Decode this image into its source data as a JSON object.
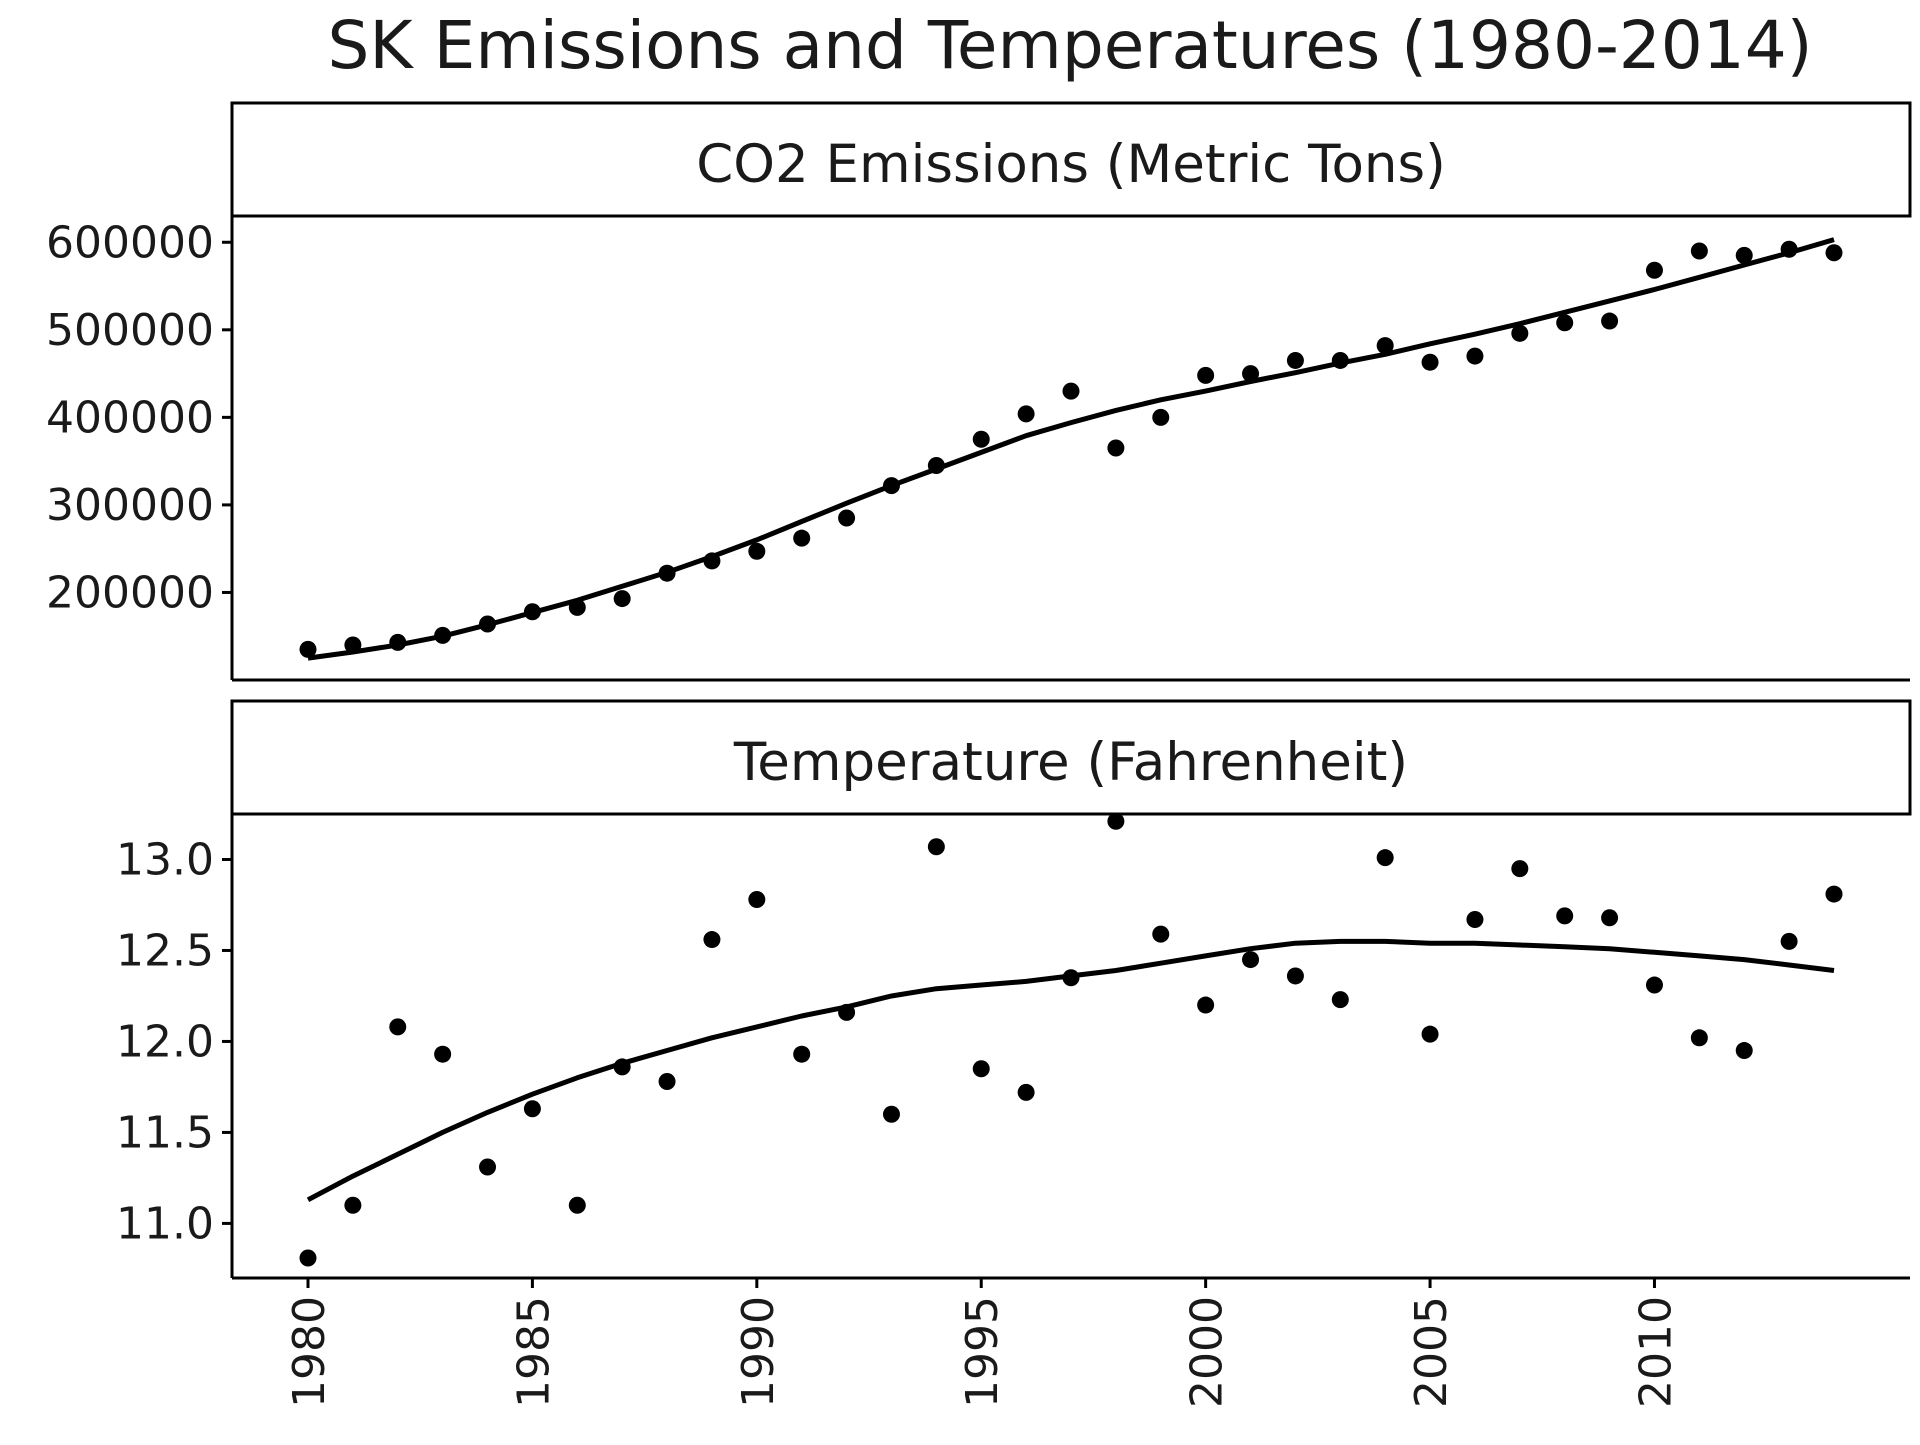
{
  "chart_data": {
    "type": "scatter",
    "title": "SK Emissions and Temperatures (1980-2014)",
    "x": [
      1980,
      1981,
      1982,
      1983,
      1984,
      1985,
      1986,
      1987,
      1988,
      1989,
      1990,
      1991,
      1992,
      1993,
      1994,
      1995,
      1996,
      1997,
      1998,
      1999,
      2000,
      2001,
      2002,
      2003,
      2004,
      2005,
      2006,
      2007,
      2008,
      2009,
      2010,
      2011,
      2012,
      2013,
      2014
    ],
    "x_ticks": [
      "1980",
      "1985",
      "1990",
      "1995",
      "2000",
      "2005",
      "2010"
    ],
    "panels": [
      {
        "strip_label": "CO2 Emissions (Metric Tons)",
        "ylim": [
          100000,
          630000
        ],
        "y_ticks": [
          "200000",
          "300000",
          "400000",
          "500000",
          "600000"
        ],
        "points": [
          135000,
          140000,
          143000,
          151000,
          164000,
          178000,
          183000,
          193000,
          222000,
          236000,
          247000,
          262000,
          285000,
          322000,
          345000,
          375000,
          404000,
          430000,
          365000,
          400000,
          448000,
          450000,
          465000,
          465000,
          482000,
          463000,
          470000,
          496000,
          508000,
          510000,
          568000,
          590000,
          585000,
          592000,
          588000
        ],
        "trend": [
          125000,
          132000,
          140000,
          150000,
          163000,
          177000,
          191000,
          207000,
          223000,
          241000,
          260000,
          281000,
          302000,
          322000,
          341000,
          360000,
          379000,
          394000,
          408000,
          420000,
          430000,
          441000,
          451000,
          462000,
          472000,
          484000,
          495000,
          507000,
          520000,
          533000,
          546000,
          560000,
          574000,
          588000,
          603000
        ]
      },
      {
        "strip_label": "Temperature (Fahrenheit)",
        "ylim": [
          10.7,
          13.25
        ],
        "y_ticks": [
          "11.0",
          "11.5",
          "12.0",
          "12.5",
          "13.0"
        ],
        "points": [
          10.81,
          11.1,
          12.08,
          11.93,
          11.31,
          11.63,
          11.1,
          11.86,
          11.78,
          12.56,
          12.78,
          11.93,
          12.16,
          11.6,
          13.07,
          11.85,
          11.72,
          12.35,
          13.21,
          12.59,
          12.2,
          12.45,
          12.36,
          12.23,
          13.01,
          12.04,
          12.67,
          12.95,
          12.69,
          12.68,
          12.31,
          12.02,
          11.95,
          12.55,
          12.81
        ],
        "trend": [
          11.13,
          11.26,
          11.38,
          11.5,
          11.61,
          11.71,
          11.8,
          11.88,
          11.95,
          12.02,
          12.08,
          12.14,
          12.19,
          12.25,
          12.29,
          12.31,
          12.33,
          12.36,
          12.39,
          12.43,
          12.47,
          12.51,
          12.54,
          12.55,
          12.55,
          12.54,
          12.54,
          12.53,
          12.52,
          12.51,
          12.49,
          12.47,
          12.45,
          12.42,
          12.39
        ]
      }
    ],
    "grid": false,
    "legend": "none"
  }
}
